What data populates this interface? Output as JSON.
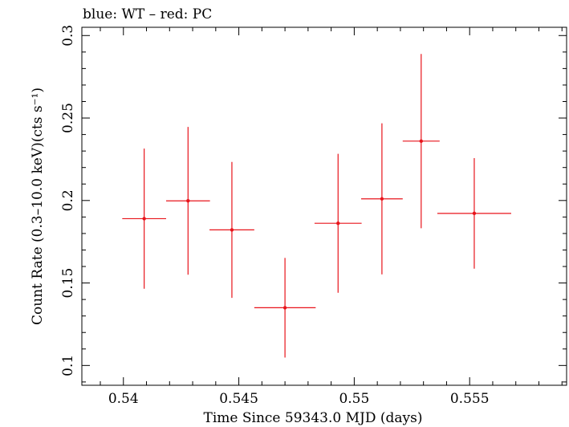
{
  "chart_data": {
    "type": "scatter",
    "title": "blue: WT – red: PC",
    "xlabel": "Time Since 59343.0 MJD (days)",
    "ylabel": "Count Rate (0.3–10.0 keV)(cts s⁻¹)",
    "xlim": [
      0.5382,
      0.5592
    ],
    "ylim": [
      0.088,
      0.305
    ],
    "xticks": [
      0.54,
      0.545,
      0.55,
      0.555
    ],
    "xtick_labels": [
      "0.54",
      "0.545",
      "0.55",
      "0.555"
    ],
    "yticks": [
      0.1,
      0.15,
      0.2,
      0.25,
      0.3
    ],
    "ytick_labels": [
      "0.1",
      "0.15",
      "0.2",
      "0.25",
      "0.3"
    ],
    "grid": false,
    "series": [
      {
        "name": "PC",
        "color": "#e8141b",
        "points": [
          {
            "x": 0.5409,
            "xerr": 0.00095,
            "y": 0.189,
            "yerr": 0.0425
          },
          {
            "x": 0.5428,
            "xerr": 0.00095,
            "y": 0.1998,
            "yerr": 0.0448
          },
          {
            "x": 0.5447,
            "xerr": 0.00097,
            "y": 0.1822,
            "yerr": 0.0412
          },
          {
            "x": 0.547,
            "xerr": 0.00133,
            "y": 0.135,
            "yerr": 0.0302
          },
          {
            "x": 0.5493,
            "xerr": 0.00102,
            "y": 0.1862,
            "yerr": 0.0421
          },
          {
            "x": 0.5512,
            "xerr": 0.0009,
            "y": 0.201,
            "yerr": 0.0458
          },
          {
            "x": 0.5529,
            "xerr": 0.0008,
            "y": 0.236,
            "yerr": 0.0528
          },
          {
            "x": 0.5552,
            "xerr": 0.0016,
            "y": 0.1922,
            "yerr": 0.0335
          }
        ]
      }
    ]
  }
}
